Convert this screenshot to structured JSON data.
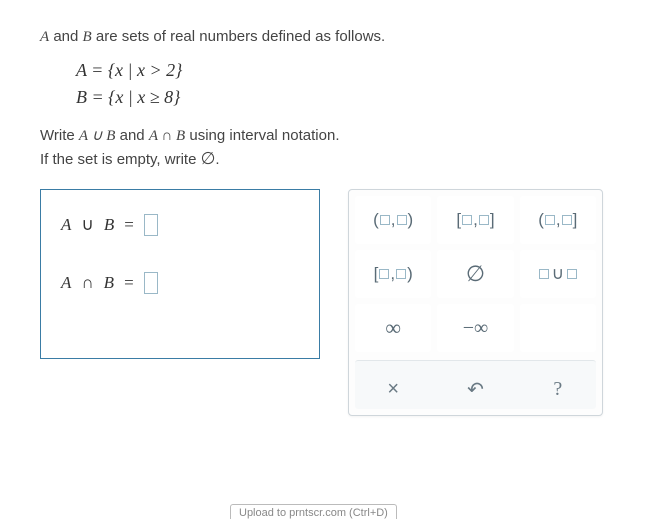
{
  "intro": {
    "pre": "A",
    "mid": " and ",
    "post": "B",
    "tail": " are sets of real numbers defined as follows."
  },
  "setA": "A = {x | x > 2}",
  "setB": "B = {x | x ≥ 8}",
  "instruction1_pre": "Write ",
  "instruction1_mid": "A ∪ B",
  "instruction1_and": " and ",
  "instruction1_mid2": "A ∩ B",
  "instruction1_tail": " using interval notation.",
  "instruction2_pre": "If the set is empty, write ",
  "instruction2_sym": "∅",
  "instruction2_tail": ".",
  "answers": {
    "union_label_A": "A",
    "union_op": "∪",
    "union_label_B": "B",
    "eq": "=",
    "inter_label_A": "A",
    "inter_op": "∩",
    "inter_label_B": "B"
  },
  "palette_actions": {
    "clear": "×",
    "undo": "↶",
    "help": "?"
  },
  "upload_text": "Upload to prntscr.com (Ctrl+D)"
}
